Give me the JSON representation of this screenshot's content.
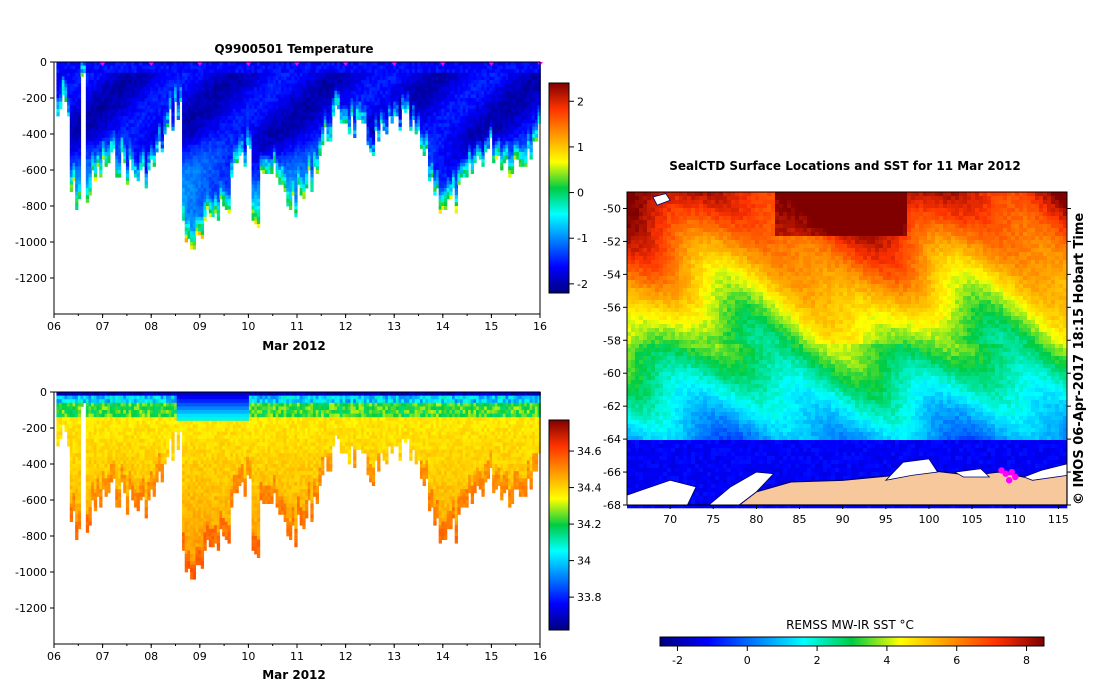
{
  "title": "Q9900501  Temperature",
  "map_title": "SealCTD Surface Locations and SST for 11 Mar 2012",
  "watermark": "© IMOS 06-Apr-2017 18:15 Hobart Time",
  "sst_label": "REMSS MW-IR SST °C",
  "colors": {
    "ice": "#ffffff",
    "land": "#f7c89c",
    "track": "#ff00ff",
    "coast": "#000066"
  },
  "chart_data": [
    {
      "type": "heatmap",
      "title": "Q9900501  Temperature",
      "xlabel": "Mar 2012",
      "ylabel": "",
      "x_ticks": [
        "06",
        "07",
        "08",
        "09",
        "10",
        "11",
        "12",
        "13",
        "14",
        "15",
        "16"
      ],
      "xlim": [
        "06",
        "16"
      ],
      "ylim": [
        -1400,
        0
      ],
      "y_ticks": [
        0,
        -200,
        -400,
        -600,
        -800,
        -1000,
        -1200
      ],
      "colorbar": {
        "ticks": [
          2,
          1,
          0,
          -1,
          -2
        ],
        "range": [
          -2.2,
          2.4
        ]
      },
      "profile_markers_x": [
        "07",
        "08",
        "09",
        "10",
        "11",
        "12",
        "13",
        "14",
        "15",
        "16"
      ]
    },
    {
      "type": "heatmap",
      "title": "",
      "xlabel": "Mar 2012",
      "ylabel": "",
      "x_ticks": [
        "06",
        "07",
        "08",
        "09",
        "10",
        "11",
        "12",
        "13",
        "14",
        "15",
        "16"
      ],
      "xlim": [
        "06",
        "16"
      ],
      "ylim": [
        -1400,
        0
      ],
      "y_ticks": [
        0,
        -200,
        -400,
        -600,
        -800,
        -1000,
        -1200
      ],
      "colorbar": {
        "ticks": [
          34.6,
          34.4,
          34.2,
          34,
          33.8
        ],
        "range": [
          33.62,
          34.77
        ]
      }
    },
    {
      "type": "heatmap",
      "title": "SealCTD Surface Locations and SST for 11 Mar 2012",
      "xlabel": "",
      "ylabel": "",
      "x_ticks": [
        70,
        75,
        80,
        85,
        90,
        95,
        100,
        105,
        110,
        115
      ],
      "y_ticks": [
        -50,
        -52,
        -54,
        -56,
        -58,
        -60,
        -62,
        -64,
        -66,
        -68
      ],
      "xlim": [
        65,
        116
      ],
      "ylim": [
        -68,
        -49
      ],
      "colorbar": {
        "label": "REMSS MW-IR SST °C",
        "ticks": [
          -2,
          0,
          2,
          4,
          6,
          8
        ],
        "range": [
          -2.5,
          8.5
        ]
      }
    }
  ]
}
